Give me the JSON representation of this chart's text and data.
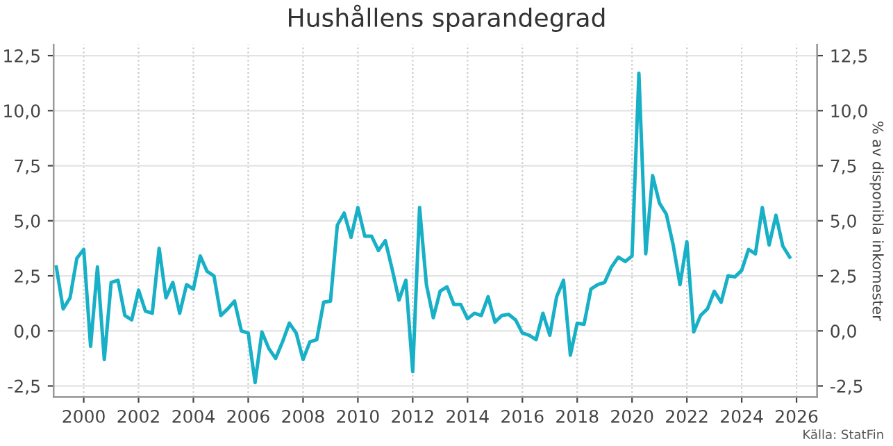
{
  "chart_data": {
    "type": "line",
    "title": "Hushållens sparandegrad",
    "y2label": "% av disponibla inkomester",
    "annotations": [
      "Källa: StatFin"
    ],
    "x": [
      1999.0,
      1999.25,
      1999.5,
      1999.75,
      2000.0,
      2000.25,
      2000.5,
      2000.75,
      2001.0,
      2001.25,
      2001.5,
      2001.75,
      2002.0,
      2002.25,
      2002.5,
      2002.75,
      2003.0,
      2003.25,
      2003.5,
      2003.75,
      2004.0,
      2004.25,
      2004.5,
      2004.75,
      2005.0,
      2005.25,
      2005.5,
      2005.75,
      2006.0,
      2006.25,
      2006.5,
      2006.75,
      2007.0,
      2007.25,
      2007.5,
      2007.75,
      2008.0,
      2008.25,
      2008.5,
      2008.75,
      2009.0,
      2009.25,
      2009.5,
      2009.75,
      2010.0,
      2010.25,
      2010.5,
      2010.75,
      2011.0,
      2011.25,
      2011.5,
      2011.75,
      2012.0,
      2012.25,
      2012.5,
      2012.75,
      2013.0,
      2013.25,
      2013.5,
      2013.75,
      2014.0,
      2014.25,
      2014.5,
      2014.75,
      2015.0,
      2015.25,
      2015.5,
      2015.75,
      2016.0,
      2016.25,
      2016.5,
      2016.75,
      2017.0,
      2017.25,
      2017.5,
      2017.75,
      2018.0,
      2018.25,
      2018.5,
      2018.75,
      2019.0,
      2019.25,
      2019.5,
      2019.75,
      2020.0,
      2020.25,
      2020.5,
      2020.75,
      2021.0,
      2021.25,
      2021.5,
      2021.75,
      2022.0,
      2022.25,
      2022.5,
      2022.75,
      2023.0,
      2023.25,
      2023.5,
      2023.75,
      2024.0,
      2024.25,
      2024.5,
      2024.75,
      2025.0,
      2025.25,
      2025.5,
      2025.75
    ],
    "series": [
      {
        "color": "#17b0c6",
        "values": [
          2.9,
          1.0,
          1.5,
          3.3,
          3.7,
          -0.7,
          2.9,
          -1.3,
          2.2,
          2.3,
          0.7,
          0.5,
          1.85,
          0.9,
          0.8,
          3.75,
          1.5,
          2.2,
          0.8,
          2.1,
          1.9,
          3.4,
          2.7,
          2.5,
          0.7,
          1.0,
          1.35,
          0.0,
          -0.1,
          -2.35,
          -0.05,
          -0.8,
          -1.25,
          -0.5,
          0.35,
          -0.1,
          -1.3,
          -0.5,
          -0.4,
          1.3,
          1.35,
          4.8,
          5.35,
          4.25,
          5.6,
          4.3,
          4.3,
          3.65,
          4.1,
          2.8,
          1.4,
          2.3,
          -1.85,
          5.6,
          2.1,
          0.6,
          1.8,
          2.0,
          1.2,
          1.2,
          0.55,
          0.8,
          0.7,
          1.55,
          0.4,
          0.7,
          0.75,
          0.5,
          -0.1,
          -0.2,
          -0.4,
          0.8,
          -0.2,
          1.55,
          2.3,
          -1.1,
          0.35,
          0.3,
          1.9,
          2.1,
          2.2,
          2.9,
          3.35,
          3.15,
          3.4,
          11.7,
          3.5,
          7.05,
          5.8,
          5.3,
          3.9,
          2.1,
          4.05,
          -0.05,
          0.7,
          1.0,
          1.8,
          1.3,
          2.5,
          2.45,
          2.75,
          3.7,
          3.5,
          5.6,
          3.9,
          5.25,
          3.85,
          3.35
        ]
      }
    ],
    "xlim": [
      1998.9,
      2026.75
    ],
    "xticks": [
      2000,
      2002,
      2004,
      2006,
      2008,
      2010,
      2012,
      2014,
      2016,
      2018,
      2020,
      2022,
      2024,
      2026
    ],
    "ylim": [
      -3.0,
      13.0
    ],
    "yticks": [
      {
        "value": -2.5,
        "label": "-2,5"
      },
      {
        "value": 0,
        "label": "0,0"
      },
      {
        "value": 2.5,
        "label": "2,5"
      },
      {
        "value": 5,
        "label": "5,0"
      },
      {
        "value": 7.5,
        "label": "7,5"
      },
      {
        "value": 10,
        "label": "10,0"
      },
      {
        "value": 12.5,
        "label": "12,5"
      }
    ],
    "y2lim": [
      -3.0,
      13.0
    ],
    "y2ticks": [
      {
        "value": -2.5,
        "label": "-2,5"
      },
      {
        "value": 0,
        "label": "0,0"
      },
      {
        "value": 2.5,
        "label": "2,5"
      },
      {
        "value": 5,
        "label": "5,0"
      },
      {
        "value": 7.5,
        "label": "7,5"
      },
      {
        "value": 10,
        "label": "10,0"
      },
      {
        "value": 12.5,
        "label": "12,5"
      }
    ],
    "grid": true,
    "marker": "none",
    "line_style": "solid",
    "legend": false
  }
}
